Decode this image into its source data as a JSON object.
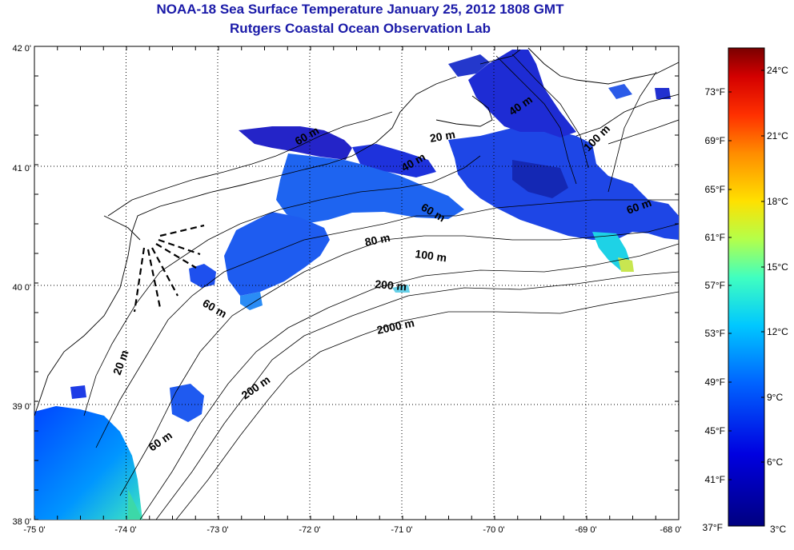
{
  "title": "NOAA-18 Sea Surface Temperature January 25, 2012 1808 GMT",
  "subtitle": "Rutgers Coastal Ocean Observation Lab",
  "map": {
    "lon_ticks": [
      "-75 0'",
      "-74 0'",
      "-73 0'",
      "-72 0'",
      "-71 0'",
      "-70 0'",
      "-69 0'",
      "-68 0'"
    ],
    "lat_ticks": [
      "42 0'",
      "41 0'",
      "40 0'",
      "39 0'",
      "38 0'"
    ],
    "depth_labels": [
      "20 m",
      "40 m",
      "60 m",
      "80 m",
      "100 m",
      "200 m",
      "2000 m",
      "20 m",
      "40 m",
      "100 m",
      "60 m",
      "200 m",
      "60 m",
      "60 m",
      "60 m"
    ]
  },
  "colorbar": {
    "fahrenheit": [
      "73°F",
      "69°F",
      "65°F",
      "61°F",
      "57°F",
      "53°F",
      "49°F",
      "45°F",
      "41°F",
      "37°F"
    ],
    "celsius": [
      "24°C",
      "21°C",
      "18°C",
      "15°C",
      "12°C",
      "9°C",
      "6°C",
      "3°C"
    ],
    "colors": [
      "#7a0000",
      "#d40000",
      "#ff3000",
      "#ff8c00",
      "#ffe000",
      "#b4ff4a",
      "#40ffc0",
      "#00c8ff",
      "#0064ff",
      "#0000e0",
      "#000080"
    ]
  }
}
